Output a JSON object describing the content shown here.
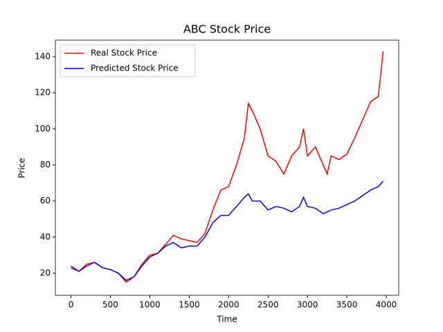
{
  "chart_data": {
    "type": "line",
    "title": "ABC Stock Price",
    "x_label": "Time",
    "y_label": "Price",
    "x": [
      0,
      100,
      200,
      300,
      400,
      500,
      600,
      700,
      800,
      900,
      1000,
      1100,
      1200,
      1300,
      1400,
      1500,
      1600,
      1700,
      1800,
      1900,
      2000,
      2100,
      2200,
      2250,
      2300,
      2400,
      2500,
      2600,
      2700,
      2800,
      2900,
      2950,
      3000,
      3100,
      3200,
      3250,
      3300,
      3400,
      3500,
      3600,
      3700,
      3800,
      3900,
      3960
    ],
    "series": [
      {
        "name": "Real Stock Price",
        "color": "#ff0000",
        "values": [
          24,
          21,
          25,
          26,
          23,
          22,
          20,
          15,
          18,
          25,
          30,
          31,
          36,
          41,
          39,
          38,
          37,
          42,
          55,
          66,
          68,
          80,
          95,
          114,
          110,
          100,
          85,
          82,
          75,
          85,
          90,
          100,
          85,
          90,
          80,
          75,
          85,
          83,
          86,
          95,
          105,
          115,
          118,
          143
        ]
      },
      {
        "name": "Predicted Stock Price",
        "color": "#0000ff",
        "values": [
          23,
          21,
          24,
          26,
          23,
          22,
          20,
          16,
          18,
          24,
          29,
          31,
          35,
          37,
          34,
          35,
          35,
          40,
          48,
          52,
          52,
          57,
          62,
          64,
          60,
          60,
          55,
          57,
          56,
          54,
          57,
          62,
          57,
          56,
          53,
          54,
          55,
          56,
          58,
          60,
          63,
          66,
          68,
          71
        ]
      }
    ],
    "xlim": [
      -198,
      4158
    ],
    "ylim": [
      7.7,
      149.2
    ],
    "xticks": [
      0,
      500,
      1000,
      1500,
      2000,
      2500,
      3000,
      3500,
      4000
    ],
    "yticks": [
      20,
      40,
      60,
      80,
      100,
      120,
      140
    ],
    "legend": "upper left"
  }
}
